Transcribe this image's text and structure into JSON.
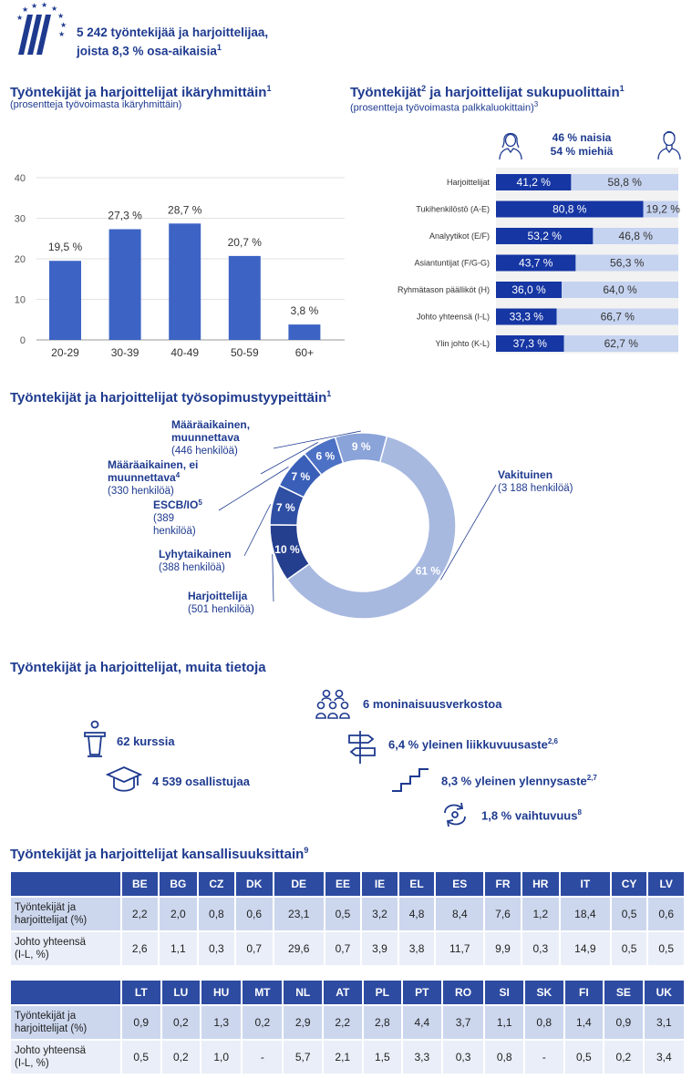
{
  "header": {
    "line1": "5 242 työntekijää ja harjoittelijaa,",
    "line2": "joista 8,3 % osa-aikaisia",
    "sup": "1"
  },
  "age_section": {
    "title": "Työntekijät ja harjoittelijat ikäryhmittäin",
    "sup": "1",
    "subtitle": "(prosentteja työvoimasta ikäryhmittäin)"
  },
  "gender_section": {
    "title_a": "Työntekijät",
    "sup_a": "2",
    "title_b": " ja harjoittelijat sukupuolittain",
    "sup_b": "1",
    "subtitle": "(prosentteja työvoimasta palkkaluokittain)",
    "subtitle_sup": "3",
    "women": "46 % naisia",
    "men": "54 % miehiä"
  },
  "contract_section": {
    "title": "Työntekijät ja harjoittelijat työsopimustyypeittäin",
    "sup": "1"
  },
  "other_section": {
    "title": "Työntekijät ja harjoittelijat, muita tietoja",
    "networks": "6 moninaisuusverkostoa",
    "courses": "62 kurssia",
    "mobility": "6,4 % yleinen liikkuvuusaste",
    "mobility_sup": "2,6",
    "participants": "4 539 osallistujaa",
    "promotion": "8,3 % yleinen ylennysaste",
    "promotion_sup": "2,7",
    "turnover": "1,8 % vaihtuvuus",
    "turnover_sup": "8"
  },
  "nationality_section": {
    "title": "Työntekijät ja harjoittelijat kansallisuuksittain",
    "sup": "9",
    "row_label_1": [
      "Työntekijät ja",
      "harjoittelijat (%)"
    ],
    "row_label_2": [
      "Johto yhteensä",
      "(I-L, %)"
    ],
    "table1": {
      "countries": [
        "BE",
        "BG",
        "CZ",
        "DK",
        "DE",
        "EE",
        "IE",
        "EL",
        "ES",
        "FR",
        "HR",
        "IT",
        "CY",
        "LV"
      ],
      "staff": [
        "2,2",
        "2,0",
        "0,8",
        "0,6",
        "23,1",
        "0,5",
        "3,2",
        "4,8",
        "8,4",
        "7,6",
        "1,2",
        "18,4",
        "0,5",
        "0,6"
      ],
      "mgmt": [
        "2,6",
        "1,1",
        "0,3",
        "0,7",
        "29,6",
        "0,7",
        "3,9",
        "3,8",
        "11,7",
        "9,9",
        "0,3",
        "14,9",
        "0,5",
        "0,5"
      ]
    },
    "table2": {
      "countries": [
        "LT",
        "LU",
        "HU",
        "MT",
        "NL",
        "AT",
        "PL",
        "PT",
        "RO",
        "SI",
        "SK",
        "FI",
        "SE",
        "UK"
      ],
      "staff": [
        "0,9",
        "0,2",
        "1,3",
        "0,2",
        "2,9",
        "2,2",
        "2,8",
        "4,4",
        "3,7",
        "1,1",
        "0,8",
        "1,4",
        "0,9",
        "3,1"
      ],
      "mgmt": [
        "0,5",
        "0,2",
        "1,0",
        "-",
        "5,7",
        "2,1",
        "1,5",
        "3,3",
        "0,3",
        "0,8",
        "-",
        "0,5",
        "0,2",
        "3,4"
      ]
    }
  },
  "chart_data": [
    {
      "type": "bar",
      "categories": [
        "20-29",
        "30-39",
        "40-49",
        "50-59",
        "60+"
      ],
      "values": [
        19.5,
        27.3,
        28.7,
        20.7,
        3.8
      ],
      "value_labels": [
        "19,5 %",
        "27,3 %",
        "28,7 %",
        "20,7 %",
        "3,8 %"
      ],
      "yticks": [
        "0",
        "10",
        "20",
        "30",
        "40"
      ],
      "ylim": [
        0,
        40
      ],
      "color": "#3d64c4"
    },
    {
      "type": "bar",
      "orientation": "horizontal-stacked",
      "categories": [
        "Harjoittelijat",
        "Tukihenkilöstö (A-E)",
        "Analyytikot (E/F)",
        "Asiantuntijat (F/G-G)",
        "Ryhmätason päälliköt (H)",
        "Johto yhteensä (I-L)",
        "Ylin johto (K-L)"
      ],
      "series": [
        {
          "values": [
            41.2,
            80.8,
            53.2,
            43.7,
            36.0,
            33.3,
            37.3
          ],
          "labels": [
            "41,2 %",
            "80,8 %",
            "53,2 %",
            "43,7 %",
            "36,0 %",
            "33,3 %",
            "37,3 %"
          ],
          "color": "#1536a3"
        },
        {
          "values": [
            58.8,
            19.2,
            46.8,
            56.3,
            64.0,
            66.7,
            62.7
          ],
          "labels": [
            "58,8 %",
            "19,2 %",
            "46,8 %",
            "56,3 %",
            "64,0 %",
            "66,7 %",
            "62,7 %"
          ],
          "color": "#c5d3f0"
        }
      ]
    },
    {
      "type": "pie",
      "style": "donut",
      "slices": [
        {
          "label": "Vakituinen",
          "count": "(3 188 henkilöä)",
          "value": 61,
          "pct": "61 %",
          "color": "#a8b9e0"
        },
        {
          "label": "Harjoittelija",
          "count": "(501 henkilöä)",
          "value": 10,
          "pct": "10 %",
          "color": "#253f8f"
        },
        {
          "label": "Lyhytaikainen",
          "count": "(388 henkilöä)",
          "value": 7,
          "pct": "7 %",
          "color": "#2e4fa3"
        },
        {
          "label": "ESCB/IO",
          "label_sup": "5",
          "count": "(389 henkilöä)",
          "count_lines": [
            "(389",
            "henkilöä)"
          ],
          "value": 7,
          "pct": "7 %",
          "color": "#3a5fb8"
        },
        {
          "label": "Määräaikainen, ei muunnettava",
          "label_lines": [
            "Määräaikainen, ei",
            "muunnettava"
          ],
          "label_sup": "4",
          "count": "(330 henkilöä)",
          "value": 6,
          "pct": "6 %",
          "color": "#4d71c4"
        },
        {
          "label": "Määräaikainen, muunnettava",
          "label_lines": [
            "Määräaikainen,",
            "muunnettava"
          ],
          "count": "(446 henkilöä)",
          "value": 9,
          "pct": "9 %",
          "color": "#8aa3d8"
        }
      ]
    }
  ]
}
